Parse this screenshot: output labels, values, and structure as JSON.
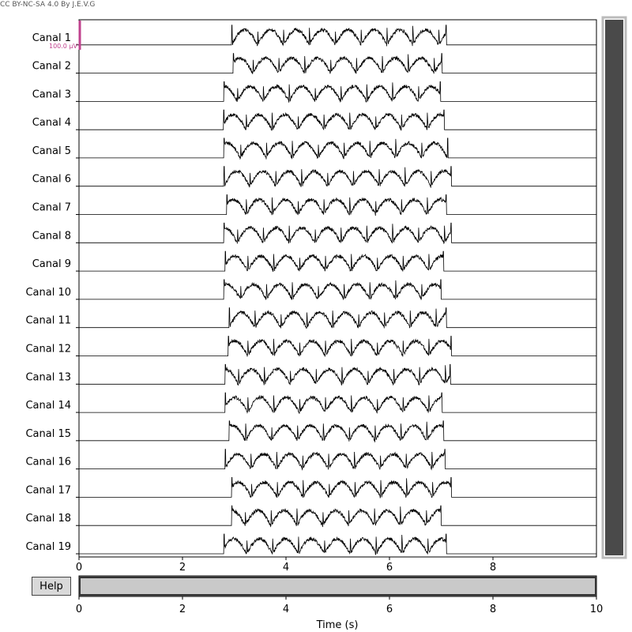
{
  "credit": "CC BY-NC-SA 4.0 By J.E.V.G",
  "help_label": "Help",
  "chart_data": {
    "type": "line",
    "title": "",
    "xlabel": "Time (s)",
    "ylabel": "",
    "xlim": [
      0,
      10
    ],
    "xticks": [
      0,
      2,
      4,
      6,
      8
    ],
    "overview_xticks": [
      0,
      2,
      4,
      6,
      8,
      10
    ],
    "scale_bar_label": "100.0 µV",
    "scale_bar_color": "#c0418e",
    "trace_color": "#000000",
    "scrollbar_fill_color": "#4a4a4a",
    "channels": [
      {
        "name": "Canal 1",
        "onset": 2.95,
        "offset": 7.1
      },
      {
        "name": "Canal 2",
        "onset": 2.98,
        "offset": 7.02
      },
      {
        "name": "Canal 3",
        "onset": 2.8,
        "offset": 6.99
      },
      {
        "name": "Canal 4",
        "onset": 2.79,
        "offset": 7.06
      },
      {
        "name": "Canal 5",
        "onset": 2.8,
        "offset": 7.13
      },
      {
        "name": "Canal 6",
        "onset": 2.8,
        "offset": 7.2
      },
      {
        "name": "Canal 7",
        "onset": 2.85,
        "offset": 7.1
      },
      {
        "name": "Canal 8",
        "onset": 2.8,
        "offset": 7.2
      },
      {
        "name": "Canal 9",
        "onset": 2.82,
        "offset": 7.05
      },
      {
        "name": "Canal 10",
        "onset": 2.8,
        "offset": 7.0
      },
      {
        "name": "Canal 11",
        "onset": 2.9,
        "offset": 7.1
      },
      {
        "name": "Canal 12",
        "onset": 2.88,
        "offset": 7.2
      },
      {
        "name": "Canal 13",
        "onset": 2.82,
        "offset": 7.18
      },
      {
        "name": "Canal 14",
        "onset": 2.82,
        "offset": 7.02
      },
      {
        "name": "Canal 15",
        "onset": 2.9,
        "offset": 7.05
      },
      {
        "name": "Canal 16",
        "onset": 2.82,
        "offset": 7.08
      },
      {
        "name": "Canal 17",
        "onset": 2.95,
        "offset": 7.2
      },
      {
        "name": "Canal 18",
        "onset": 2.95,
        "offset": 7.0
      },
      {
        "name": "Canal 19",
        "onset": 2.8,
        "offset": 7.1
      }
    ]
  }
}
